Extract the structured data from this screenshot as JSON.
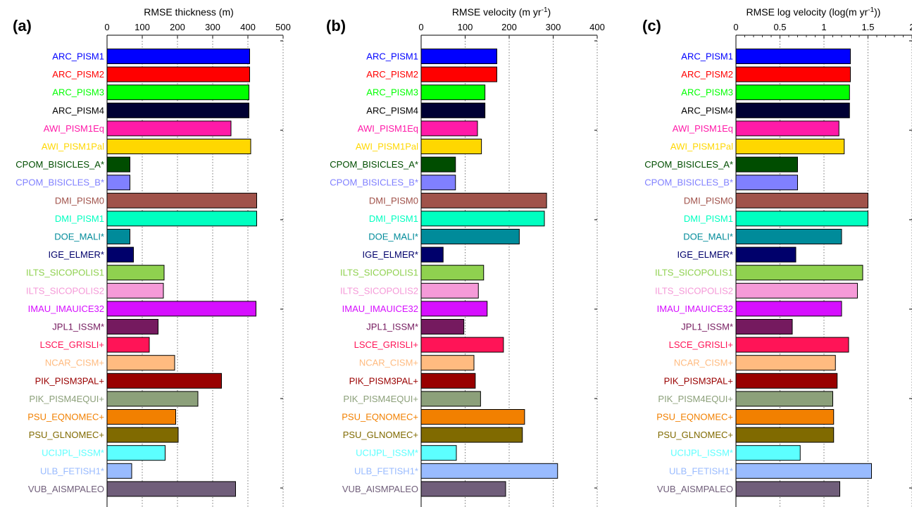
{
  "chart_data": [
    {
      "type": "bar",
      "orientation": "horizontal",
      "panel": "(a)",
      "xlabel": "RMSE thickness (m)",
      "xlim": [
        0,
        500
      ],
      "xticks": [
        "0",
        "100",
        "200",
        "300",
        "400",
        "500"
      ],
      "grid": "vertical dotted",
      "categories": [
        "ARC_PISM1",
        "ARC_PISM2",
        "ARC_PISM3",
        "ARC_PISM4",
        "AWI_PISM1Eq",
        "AWI_PISM1Pal",
        "CPOM_BISICLES_A*",
        "CPOM_BISICLES_B*",
        "DMI_PISM0",
        "DMI_PISM1",
        "DOE_MALI*",
        "IGE_ELMER*",
        "ILTS_SICOPOLIS1",
        "ILTS_SICOPOLIS2",
        "IMAU_IMAUICE32",
        "JPL1_ISSM*",
        "LSCE_GRISLI+",
        "NCAR_CISM+",
        "PIK_PISM3PAL+",
        "PIK_PISM4EQUI+",
        "PSU_EQNOMEC+",
        "PSU_GLNOMEC+",
        "UCIJPL_ISSM*",
        "ULB_FETISH1*",
        "VUB_AISMPALEO"
      ],
      "values": [
        405,
        405,
        403,
        403,
        352,
        408,
        65,
        65,
        425,
        425,
        65,
        75,
        162,
        160,
        423,
        145,
        120,
        192,
        325,
        258,
        195,
        202,
        165,
        70,
        365
      ]
    },
    {
      "type": "bar",
      "orientation": "horizontal",
      "panel": "(b)",
      "xlabel": "RMSE velocity (m yr-1)",
      "xlabel_main": "RMSE velocity (m yr",
      "xlabel_sup": "-1",
      "xlabel_end": ")",
      "xlim": [
        0,
        400
      ],
      "xticks": [
        "0",
        "100",
        "200",
        "300",
        "400"
      ],
      "grid": "vertical dotted",
      "categories": [
        "ARC_PISM1",
        "ARC_PISM2",
        "ARC_PISM3",
        "ARC_PISM4",
        "AWI_PISM1Eq",
        "AWI_PISM1Pal",
        "CPOM_BISICLES_A*",
        "CPOM_BISICLES_B*",
        "DMI_PISM0",
        "DMI_PISM1",
        "DOE_MALI*",
        "IGE_ELMER*",
        "ILTS_SICOPOLIS1",
        "ILTS_SICOPOLIS2",
        "IMAU_IMAUICE32",
        "JPL1_ISSM*",
        "LSCE_GRISLI+",
        "NCAR_CISM+",
        "PIK_PISM3PAL+",
        "PIK_PISM4EQUI+",
        "PSU_EQNOMEC+",
        "PSU_GLNOMEC+",
        "UCIJPL_ISSM*",
        "ULB_FETISH1*",
        "VUB_AISMPALEO"
      ],
      "values": [
        172,
        172,
        145,
        145,
        128,
        137,
        78,
        78,
        285,
        280,
        223,
        50,
        142,
        130,
        150,
        97,
        187,
        120,
        123,
        135,
        235,
        230,
        80,
        310,
        192
      ]
    },
    {
      "type": "bar",
      "orientation": "horizontal",
      "panel": "(c)",
      "xlabel": "RMSE log velocity (log(m yr-1))",
      "xlabel_main": "RMSE log velocity (log(m yr",
      "xlabel_sup": "-1",
      "xlabel_end": "))",
      "xlim": [
        0,
        2
      ],
      "xticks": [
        "0",
        "0.5",
        "1",
        "1.5",
        "2"
      ],
      "grid": "vertical dotted",
      "categories": [
        "ARC_PISM1",
        "ARC_PISM2",
        "ARC_PISM3",
        "ARC_PISM4",
        "AWI_PISM1Eq",
        "AWI_PISM1Pal",
        "CPOM_BISICLES_A*",
        "CPOM_BISICLES_B*",
        "DMI_PISM0",
        "DMI_PISM1",
        "DOE_MALI*",
        "IGE_ELMER*",
        "ILTS_SICOPOLIS1",
        "ILTS_SICOPOLIS2",
        "IMAU_IMAUICE32",
        "JPL1_ISSM*",
        "LSCE_GRISLI+",
        "NCAR_CISM+",
        "PIK_PISM3PAL+",
        "PIK_PISM4EQUI+",
        "PSU_EQNOMEC+",
        "PSU_GLNOMEC+",
        "UCIJPL_ISSM*",
        "ULB_FETISH1*",
        "VUB_AISMPALEO"
      ],
      "values": [
        1.3,
        1.3,
        1.29,
        1.29,
        1.17,
        1.23,
        0.7,
        0.7,
        1.5,
        1.5,
        1.2,
        0.68,
        1.44,
        1.38,
        1.2,
        0.64,
        1.28,
        1.13,
        1.15,
        1.1,
        1.11,
        1.11,
        0.73,
        1.54,
        1.18
      ]
    }
  ],
  "series_colors": [
    "#0000ff",
    "#ff0000",
    "#00ff00",
    "#000033",
    "#ff1aa8",
    "#ffd700",
    "#004d00",
    "#8080ff",
    "#a0524a",
    "#00ffc0",
    "#008b9a",
    "#00006b",
    "#8fd14f",
    "#f59ad8",
    "#d60fff",
    "#751a5f",
    "#ff1457",
    "#ffbb80",
    "#990000",
    "#8ca07a",
    "#f28000",
    "#806a00",
    "#5cffff",
    "#99bbff",
    "#705e7a"
  ],
  "label_colors": [
    "#0000ff",
    "#ff0000",
    "#00ff00",
    "#000000",
    "#ff1aa8",
    "#ffd700",
    "#004d00",
    "#8080ff",
    "#a0524a",
    "#00ffc0",
    "#008b9a",
    "#00006b",
    "#8fd14f",
    "#f59ad8",
    "#d60fff",
    "#751a5f",
    "#ff1457",
    "#ffbb80",
    "#990000",
    "#8ca07a",
    "#f28000",
    "#806a00",
    "#5cffff",
    "#99bbff",
    "#705e7a"
  ]
}
